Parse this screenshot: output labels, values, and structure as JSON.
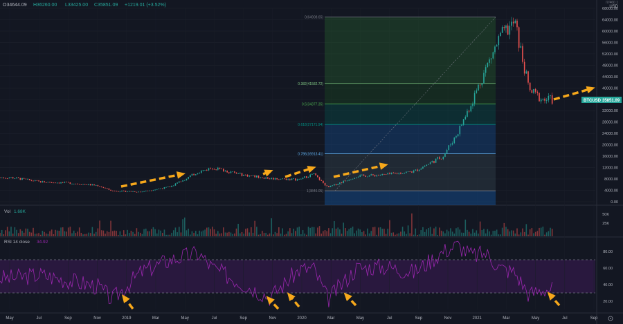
{
  "header": {
    "ohlc_open": "O34644.09",
    "ohlc_high": "H36260.00",
    "ohlc_low": "L33425.00",
    "ohlc_close": "C35851.09",
    "change": "+1219.01 (+3.52%)",
    "currency": "USD",
    "currency_top": "/7/460 1"
  },
  "colors": {
    "background": "#131722",
    "text": "#b2b5be",
    "up": "#26a69a",
    "down": "#ef5350",
    "rsi_line": "#9c27b0",
    "rsi_band": "#7b1fa2",
    "arrow": "#f7a81b",
    "fib_gray": "#787b86"
  },
  "price_panel": {
    "price_tag": "BTCUSD",
    "last_price": "35851.09",
    "y_ticks": [
      "68000.00",
      "64000.00",
      "60000.00",
      "56000.00",
      "52000.00",
      "48000.00",
      "44000.00",
      "40000.00",
      "36000.00",
      "32000.00",
      "28000.00",
      "24000.00",
      "20000.00",
      "16000.00",
      "12000.00",
      "8000.00",
      "4000.00",
      "0.00"
    ],
    "fib_levels": [
      {
        "label": "0(64908.65)",
        "value": 64908.65,
        "color": "#787b86"
      },
      {
        "label": "0.382(41582.72)",
        "value": 41582.72,
        "color": "#81c784"
      },
      {
        "label": "0.5(34377.35)",
        "value": 34377.35,
        "color": "#4caf50"
      },
      {
        "label": "0.618(27171.94)",
        "value": 27171.94,
        "color": "#009688"
      },
      {
        "label": "0.786(16913.41)",
        "value": 16913.41,
        "color": "#64b5f6"
      },
      {
        "label": "1(3846.05)",
        "value": 3846.05,
        "color": "#787b86"
      }
    ]
  },
  "volume_panel": {
    "label": "Vol",
    "value": "1.68K",
    "y_ticks": [
      "50K",
      "25K"
    ]
  },
  "rsi_panel": {
    "label": "RSI 14 close",
    "value": "34.92",
    "y_ticks": [
      "80.00",
      "60.00",
      "40.00",
      "20.00"
    ],
    "upper_band": 70,
    "lower_band": 30
  },
  "x_axis": {
    "labels": [
      "May",
      "Jul",
      "Sep",
      "Nov",
      "2019",
      "Mar",
      "May",
      "Jul",
      "Sep",
      "Nov",
      "2020",
      "Mar",
      "May",
      "Jul",
      "Sep",
      "Nov",
      "2021",
      "Mar",
      "May",
      "Jul",
      "Sep"
    ]
  },
  "chart_data": {
    "type": "line",
    "x": [
      "2018-05",
      "2018-07",
      "2018-09",
      "2018-11",
      "2018-12",
      "2019-02",
      "2019-04",
      "2019-06",
      "2019-07",
      "2019-09",
      "2019-11",
      "2020-01",
      "2020-02",
      "2020-03",
      "2020-05",
      "2020-07",
      "2020-09",
      "2020-11",
      "2020-12",
      "2021-01",
      "2021-02",
      "2021-03",
      "2021-04",
      "2021-05",
      "2021-06"
    ],
    "series": [
      {
        "values": [
          8500,
          7000,
          6600,
          5700,
          3800,
          3500,
          5200,
          10500,
          12000,
          9500,
          8200,
          7800,
          9800,
          5000,
          9000,
          9500,
          10700,
          16000,
          24000,
          35000,
          47000,
          58000,
          63000,
          39000,
          35851
        ]
      }
    ],
    "ylim": [
      0,
      68000
    ],
    "rsi": {
      "label": "RSI 14 close",
      "x": [
        "2018-05",
        "2018-07",
        "2018-09",
        "2018-11",
        "2018-12",
        "2019-02",
        "2019-04",
        "2019-06",
        "2019-07",
        "2019-09",
        "2019-11",
        "2020-01",
        "2020-02",
        "2020-03",
        "2020-05",
        "2020-07",
        "2020-09",
        "2020-11",
        "2020-12",
        "2021-01",
        "2021-02",
        "2021-03",
        "2021-04",
        "2021-05",
        "2021-06"
      ],
      "values": [
        48,
        52,
        45,
        38,
        22,
        55,
        70,
        78,
        60,
        42,
        25,
        58,
        60,
        22,
        60,
        62,
        55,
        80,
        88,
        75,
        78,
        60,
        55,
        28,
        35
      ],
      "ylim": [
        10,
        95
      ]
    }
  }
}
